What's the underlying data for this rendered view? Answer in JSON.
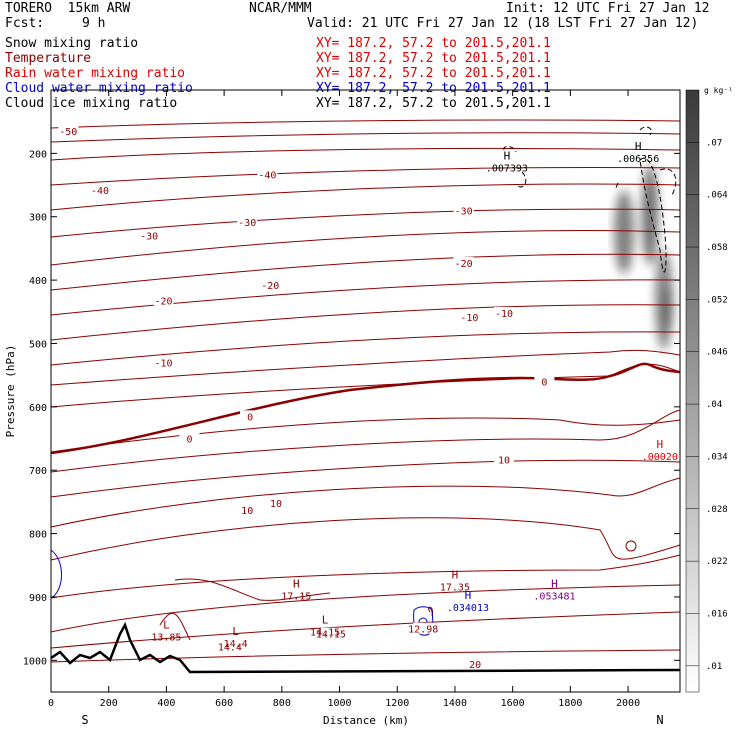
{
  "header": {
    "model": "TORERO  15km ARW",
    "center": "NCAR/MMM",
    "init": "Init: 12 UTC Fri 27 Jan 12",
    "fcst_label": "Fcst:",
    "fcst_value": "9 h",
    "valid": "Valid: 21 UTC Fri 27 Jan 12 (18 LST Fri 27 Jan 12)"
  },
  "fields": [
    {
      "name": "Snow mixing ratio",
      "xy": "XY= 187.2, 57.2 to 201.5,201.1",
      "color": "#000000"
    },
    {
      "name": "Temperature",
      "xy": "XY= 187.2, 57.2 to 201.5,201.1",
      "color": "#8b0000"
    },
    {
      "name": "Rain water mixing ratio",
      "xy": "XY= 187.2, 57.2 to 201.5,201.1",
      "color": "#e00000"
    },
    {
      "name": "Cloud water mixing ratio",
      "xy": "XY= 187.2, 57.2 to 201.5,201.1",
      "color": "#0000cc"
    },
    {
      "name": "Cloud ice mixing ratio",
      "xy": "XY= 187.2, 57.2 to 201.5,201.1",
      "color": "#000000"
    }
  ],
  "chart_data": {
    "type": "contour cross-section",
    "xlabel": "Distance (km)",
    "ylabel": "Pressure (hPa)",
    "xlim": [
      0,
      2180
    ],
    "ylim": [
      1050,
      100
    ],
    "x_ticks": [
      "0",
      "200",
      "400",
      "600",
      "800",
      "1000",
      "1200",
      "1400",
      "1600",
      "1800",
      "2000"
    ],
    "y_ticks": [
      "200",
      "300",
      "400",
      "500",
      "600",
      "700",
      "800",
      "900",
      "1000"
    ],
    "end_labels": {
      "left": "S",
      "right": "N"
    },
    "colorbar": {
      "units": "g kg⁻¹",
      "levels": [
        ".01",
        ".016",
        ".022",
        ".028",
        ".034",
        ".04",
        ".046",
        ".052",
        ".058",
        ".064",
        ".07"
      ]
    },
    "temperature_labels": [
      {
        "text": "-50",
        "x": 60,
        "p": 165
      },
      {
        "text": "-40",
        "x": 170,
        "p": 258
      },
      {
        "text": "-40",
        "x": 750,
        "p": 233
      },
      {
        "text": "-30",
        "x": 340,
        "p": 330
      },
      {
        "text": "-30",
        "x": 680,
        "p": 308
      },
      {
        "text": "-30",
        "x": 1430,
        "p": 290
      },
      {
        "text": "-20",
        "x": 390,
        "p": 432
      },
      {
        "text": "-20",
        "x": 760,
        "p": 408
      },
      {
        "text": "-20",
        "x": 1430,
        "p": 373
      },
      {
        "text": "-10",
        "x": 390,
        "p": 530
      },
      {
        "text": "-10",
        "x": 1450,
        "p": 458
      },
      {
        "text": "-10",
        "x": 1570,
        "p": 452
      },
      {
        "text": "0",
        "x": 480,
        "p": 650
      },
      {
        "text": "0",
        "x": 690,
        "p": 615
      },
      {
        "text": "0",
        "x": 1710,
        "p": 560
      },
      {
        "text": "10",
        "x": 680,
        "p": 763
      },
      {
        "text": "10",
        "x": 780,
        "p": 752
      },
      {
        "text": "10",
        "x": 1570,
        "p": 683
      },
      {
        "text": "20",
        "x": 1470,
        "p": 1006
      },
      {
        "text": "14.4",
        "x": 620,
        "p": 978
      },
      {
        "text": "14.15",
        "x": 970,
        "p": 958
      },
      {
        "text": "12.98",
        "x": 1290,
        "p": 950
      }
    ],
    "highs_lows": [
      {
        "letter": "H",
        "value": "17.15",
        "x": 850,
        "p": 885,
        "color": "#8b0000"
      },
      {
        "letter": "H",
        "value": "17.35",
        "x": 1400,
        "p": 871,
        "color": "#8b0000"
      },
      {
        "letter": "L",
        "value": "13.85",
        "x": 400,
        "p": 950,
        "color": "#8b0000"
      },
      {
        "letter": "L",
        "value": "14.4",
        "x": 640,
        "p": 960,
        "color": "#8b0000"
      },
      {
        "letter": "L",
        "value": "14.15",
        "x": 950,
        "p": 942,
        "color": "#8b0000"
      },
      {
        "letter": "H",
        "value": ".034013",
        "x": 1445,
        "p": 903,
        "color": "#0000cc"
      },
      {
        "letter": "H",
        "value": ".053481",
        "x": 1745,
        "p": 885,
        "color": "#800080"
      },
      {
        "letter": "H",
        "value": ".00020",
        "x": 2110,
        "p": 665,
        "color": "#e00000"
      },
      {
        "letter": "H",
        "value": ".007393",
        "x": 1580,
        "p": 210,
        "color": "#000000"
      },
      {
        "letter": "H",
        "value": ".006356",
        "x": 2035,
        "p": 195,
        "color": "#000000"
      }
    ]
  }
}
